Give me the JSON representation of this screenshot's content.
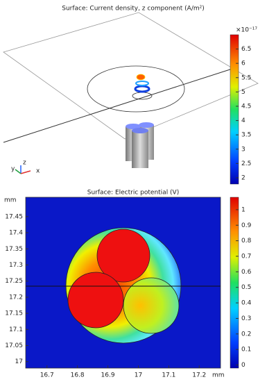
{
  "chart_data": [
    {
      "type": "surface3d",
      "title": "Surface: Current density, z component (A/m²)",
      "colorbar": {
        "clim": [
          1.78,
          7.0
        ],
        "ticks": [
          2,
          2.5,
          3,
          3.5,
          4,
          4.5,
          5,
          5.5,
          6,
          6.5
        ],
        "multiplier": "×10⁻¹⁷"
      },
      "axis_labels": [
        "x",
        "y",
        "z"
      ]
    },
    {
      "type": "heatmap",
      "title": "Surface: Electric potential (V)",
      "xlabel": "mm",
      "ylabel": "mm",
      "xlim": [
        16.63,
        17.27
      ],
      "xticks": [
        16.7,
        16.8,
        16.9,
        17,
        17.1,
        17.2
      ],
      "ylim": [
        16.98,
        17.51
      ],
      "yticks": [
        17,
        17.05,
        17.1,
        17.15,
        17.2,
        17.25,
        17.3,
        17.35,
        17.4,
        17.45
      ],
      "colorbar": {
        "clim": [
          -0.02,
          1.08
        ],
        "ticks": [
          0,
          0.1,
          0.2,
          0.3,
          0.4,
          0.5,
          0.6,
          0.7,
          0.8,
          0.9,
          1
        ]
      }
    }
  ]
}
